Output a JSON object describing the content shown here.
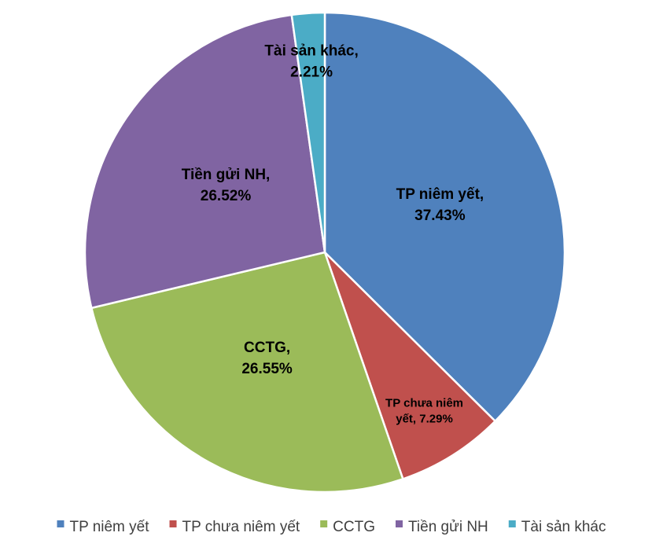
{
  "chart_data": {
    "type": "pie",
    "categories": [
      "TP niêm yết",
      "TP chưa niêm yết",
      "CCTG",
      "Tiền gửi NH",
      "Tài sản khác"
    ],
    "values": [
      37.43,
      7.29,
      26.55,
      26.52,
      2.21
    ],
    "unit": "%",
    "slice_labels": [
      [
        "TP niêm yết,",
        "37.43%"
      ],
      [
        "TP chưa niêm",
        "yết, 7.29%"
      ],
      [
        "CCTG,",
        "26.55%"
      ],
      [
        "Tiền gửi NH,",
        "26.52%"
      ],
      [
        "Tài sản khác,",
        "2.21%"
      ]
    ],
    "colors": [
      "#4F81BD",
      "#C0504D",
      "#9BBB59",
      "#8064A2",
      "#4BACC6"
    ],
    "legend": {
      "position": "bottom",
      "entries": [
        "TP niêm yết",
        "TP chưa niêm yết",
        "CCTG",
        "Tiền gửi NH",
        "Tài sản khác"
      ]
    },
    "start_angle": "12 o'clock",
    "direction": "clockwise"
  }
}
